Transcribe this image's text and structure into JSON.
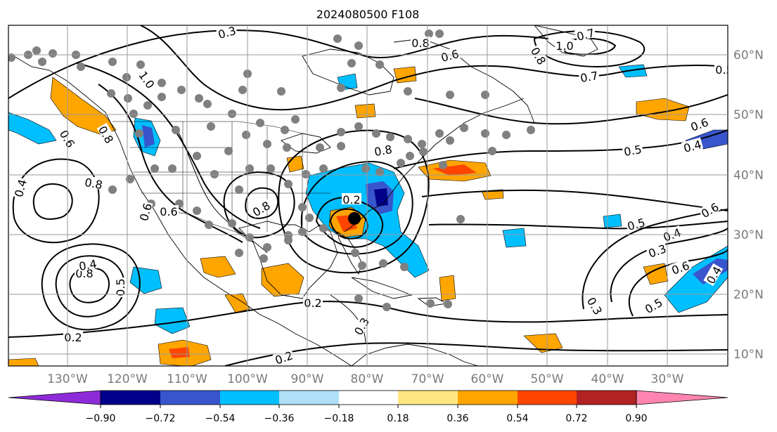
{
  "title": "2024080500 F108",
  "lon_ticks": [
    "130°W",
    "120°W",
    "110°W",
    "100°W",
    "90°W",
    "80°W",
    "70°W",
    "60°W",
    "50°W",
    "40°W",
    "30°W"
  ],
  "lat_ticks": [
    "60°N",
    "50°N",
    "40°N",
    "30°N",
    "20°N",
    "10°N"
  ],
  "contour_labels": [
    "0.3",
    "0.7",
    "1.0",
    "0.7",
    "0.8",
    "0.6",
    "0.8",
    "0.6",
    "0.5",
    "0.4",
    "1.0",
    "0.6",
    "0.8",
    "0.8",
    "0.4",
    "0.6",
    "0.8",
    "0.6",
    "0.8",
    "0.4",
    "0.3",
    "0.5",
    "0.4",
    "0.6",
    "0.5",
    "0.2",
    "0.2",
    "0.3",
    "0.2",
    "0.2",
    "0.5",
    "0.5",
    "0.3",
    "0.4",
    "0.6",
    "0.8"
  ],
  "colorbar": {
    "ticks": [
      "−0.90",
      "−0.72",
      "−0.54",
      "−0.36",
      "−0.18",
      "0.18",
      "0.36",
      "0.54",
      "0.72",
      "0.90"
    ],
    "colors": [
      "#8e2bd8",
      "#00008b",
      "#3855cc",
      "#00bfff",
      "#aee0f8",
      "#ffffff",
      "#ffe680",
      "#ffa500",
      "#ff4500",
      "#b22222",
      "#ff85b0"
    ]
  },
  "legend_colors": {
    "shade_neg": [
      "#00bfff",
      "#3855cc",
      "#00008b"
    ],
    "shade_pos": [
      "#ffa500",
      "#ff4500",
      "#b22222"
    ],
    "station_dot": "#808080",
    "storm_center": "#000000"
  }
}
